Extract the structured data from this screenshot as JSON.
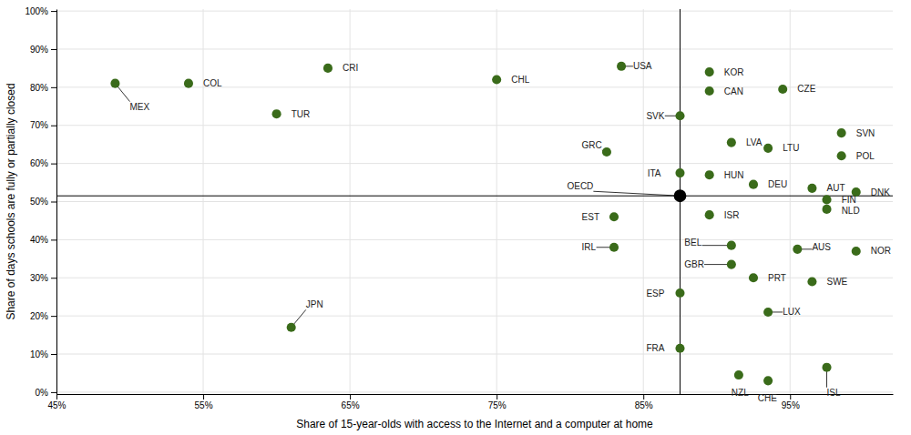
{
  "chart_data": {
    "type": "scatter",
    "xlabel": "Share of 15-year-olds with access to the Internet and a computer at home",
    "ylabel": "Share of days schools are fully or partially closed",
    "series": [
      {
        "color": "#3a6b1a",
        "marker": "circle",
        "labels": [
          "MEX",
          "COL",
          "CRI",
          "TUR",
          "CHL",
          "JPN",
          "USA",
          "GRC",
          "EST",
          "IRL",
          "KOR",
          "CAN",
          "SVK",
          "CZE",
          "SVN",
          "LVA",
          "LTU",
          "POL",
          "ITA",
          "HUN",
          "DEU",
          "AUT",
          "DNK",
          "FIN",
          "NLD",
          "ISR",
          "BEL",
          "AUS",
          "NOR",
          "GBR",
          "PRT",
          "SWE",
          "ESP",
          "LUX",
          "FRA",
          "NZL",
          "CHE",
          "ISL"
        ],
        "x": [
          0.49,
          0.54,
          0.635,
          0.6,
          0.75,
          0.61,
          0.835,
          0.825,
          0.83,
          0.83,
          0.895,
          0.895,
          0.875,
          0.945,
          0.985,
          0.91,
          0.935,
          0.985,
          0.875,
          0.895,
          0.925,
          0.965,
          0.995,
          0.975,
          0.975,
          0.895,
          0.91,
          0.955,
          0.995,
          0.91,
          0.925,
          0.965,
          0.875,
          0.935,
          0.875,
          0.915,
          0.935,
          0.975
        ],
        "values": [
          0.81,
          0.81,
          0.85,
          0.73,
          0.82,
          0.17,
          0.855,
          0.63,
          0.46,
          0.38,
          0.84,
          0.79,
          0.725,
          0.795,
          0.68,
          0.655,
          0.64,
          0.62,
          0.575,
          0.57,
          0.545,
          0.535,
          0.525,
          0.505,
          0.48,
          0.465,
          0.385,
          0.375,
          0.37,
          0.335,
          0.3,
          0.29,
          0.26,
          0.21,
          0.115,
          0.045,
          0.03,
          0.065
        ]
      },
      {
        "color": "#000000",
        "marker": "circle",
        "labels": [
          "OECD"
        ],
        "x": [
          0.875
        ],
        "values": [
          0.515
        ]
      }
    ],
    "vlines": [
      0.875
    ],
    "hlines": [
      0.515
    ],
    "xlim": [
      0.45,
      1.02
    ],
    "ylim": [
      -0.005,
      1.005
    ],
    "xticks": [
      {
        "value": 0.45,
        "label": "45%"
      },
      {
        "value": 0.55,
        "label": "55%"
      },
      {
        "value": 0.65,
        "label": "65%"
      },
      {
        "value": 0.75,
        "label": "75%"
      },
      {
        "value": 0.85,
        "label": "85%"
      },
      {
        "value": 0.95,
        "label": "95%"
      }
    ],
    "yticks": [
      {
        "value": 0,
        "label": "0%"
      },
      {
        "value": 0.1,
        "label": "10%"
      },
      {
        "value": 0.2,
        "label": "20%"
      },
      {
        "value": 0.3,
        "label": "30%"
      },
      {
        "value": 0.4,
        "label": "40%"
      },
      {
        "value": 0.5,
        "label": "50%"
      },
      {
        "value": 0.6,
        "label": "60%"
      },
      {
        "value": 0.7,
        "label": "70%"
      },
      {
        "value": 0.8,
        "label": "80%"
      },
      {
        "value": 0.9,
        "label": "90%"
      },
      {
        "value": 1.0,
        "label": "100%"
      }
    ],
    "grid": true
  }
}
